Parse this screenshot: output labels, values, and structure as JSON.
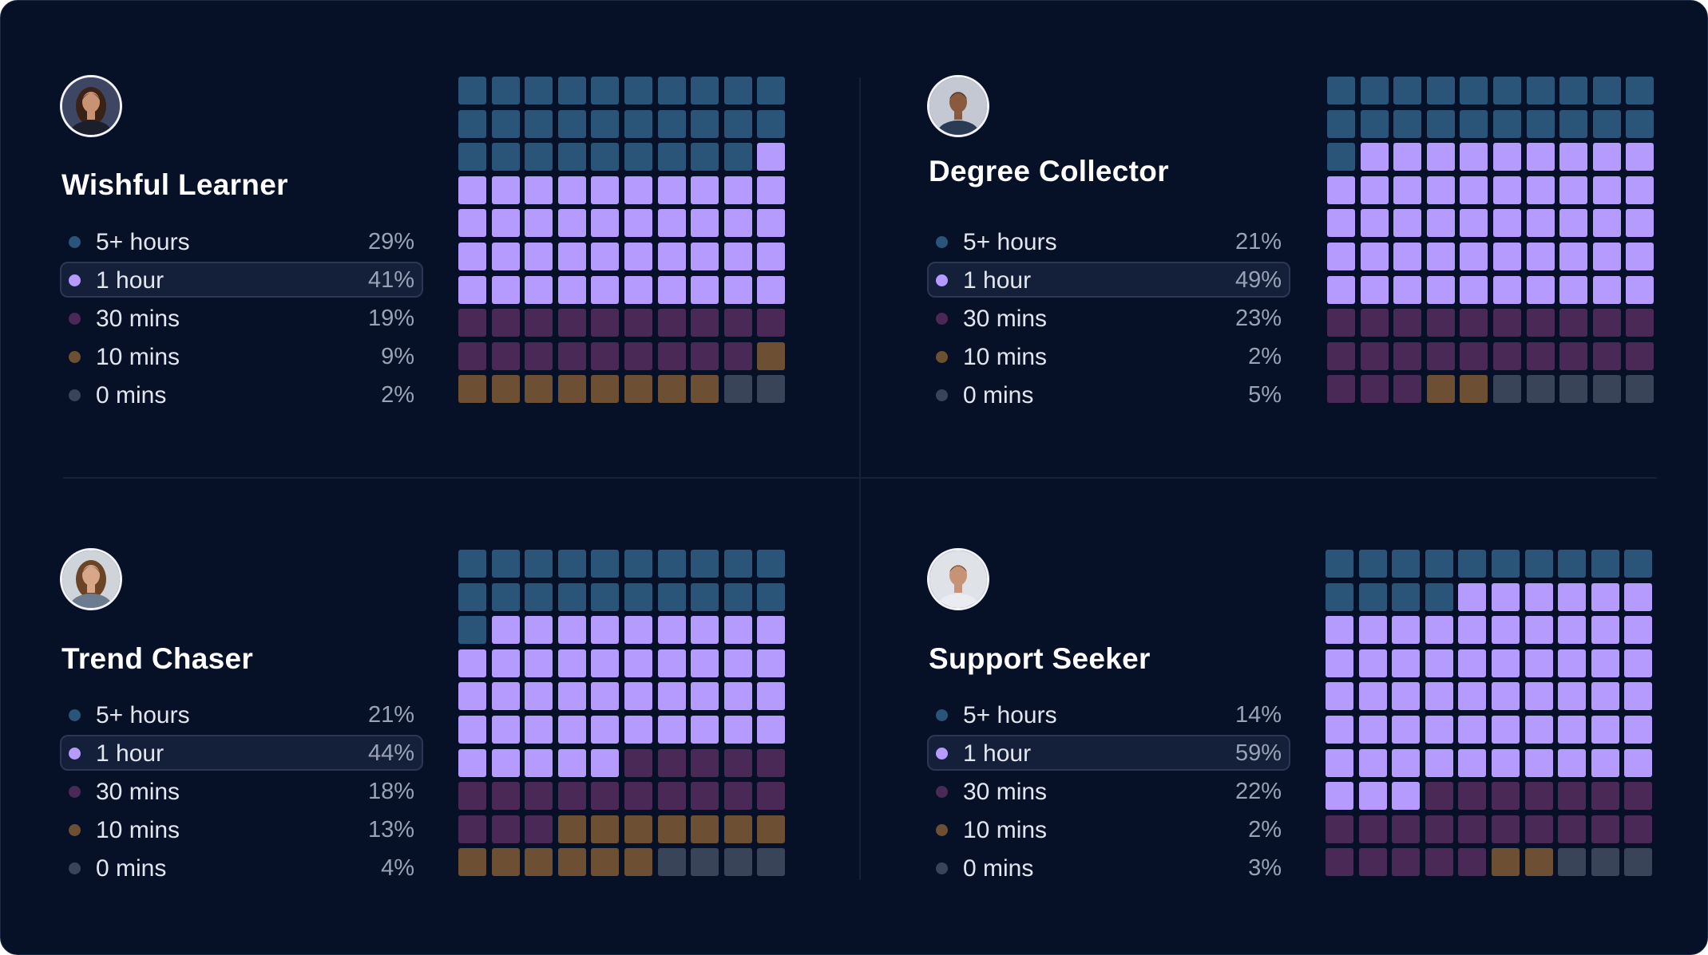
{
  "colors": {
    "five_plus_hours": "#2a5478",
    "one_hour": "#b49bfd",
    "thirty_mins": "#4b2956",
    "ten_mins": "#6d5033",
    "zero_mins": "#3a4459"
  },
  "chart_data": [
    {
      "type": "waffle",
      "title": "Wishful Learner",
      "grid": [
        10,
        10
      ],
      "categories": [
        "5+ hours",
        "1 hour",
        "30 mins",
        "10 mins",
        "0 mins"
      ],
      "percent_labels": [
        "29%",
        "41%",
        "19%",
        "9%",
        "2%"
      ],
      "values": [
        29,
        41,
        19,
        9,
        2
      ],
      "selected": "1 hour"
    },
    {
      "type": "waffle",
      "title": "Degree Collector",
      "grid": [
        10,
        10
      ],
      "categories": [
        "5+ hours",
        "1 hour",
        "30 mins",
        "10 mins",
        "0 mins"
      ],
      "percent_labels": [
        "21%",
        "49%",
        "23%",
        "2%",
        "5%"
      ],
      "values": [
        21,
        49,
        23,
        2,
        5
      ],
      "selected": "1 hour"
    },
    {
      "type": "waffle",
      "title": "Trend Chaser",
      "grid": [
        10,
        10
      ],
      "categories": [
        "5+ hours",
        "1 hour",
        "30 mins",
        "10 mins",
        "0 mins"
      ],
      "percent_labels": [
        "21%",
        "44%",
        "18%",
        "13%",
        "4%"
      ],
      "values": [
        21,
        44,
        18,
        13,
        4
      ],
      "selected": "1 hour"
    },
    {
      "type": "waffle",
      "title": "Support Seeker",
      "grid": [
        10,
        10
      ],
      "categories": [
        "5+ hours",
        "1 hour",
        "30 mins",
        "10 mins",
        "0 mins"
      ],
      "percent_labels": [
        "14%",
        "59%",
        "22%",
        "2%",
        "3%"
      ],
      "values": [
        14,
        59,
        22,
        2,
        3
      ],
      "selected": "1 hour"
    }
  ]
}
